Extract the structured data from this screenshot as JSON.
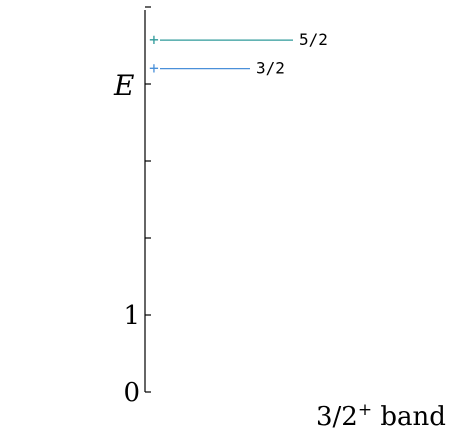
{
  "chart_data": {
    "type": "line",
    "title": "",
    "ylabel": "E",
    "ylim": [
      0,
      5
    ],
    "y_ticks": [
      0,
      1,
      2,
      3,
      4,
      5
    ],
    "y_tick_labels": [
      {
        "value": 0,
        "label": "0"
      },
      {
        "value": 1,
        "label": "1"
      }
    ],
    "band_label": {
      "main": "3/2",
      "sup": "+",
      "suffix": " band"
    },
    "levels": [
      {
        "label": "5/2",
        "energy": 4.57,
        "marker": "+",
        "color": "#2e9a9a"
      },
      {
        "label": "3/2",
        "energy": 4.2,
        "marker": "+",
        "color": "#4a90d9"
      }
    ],
    "grid": false
  }
}
